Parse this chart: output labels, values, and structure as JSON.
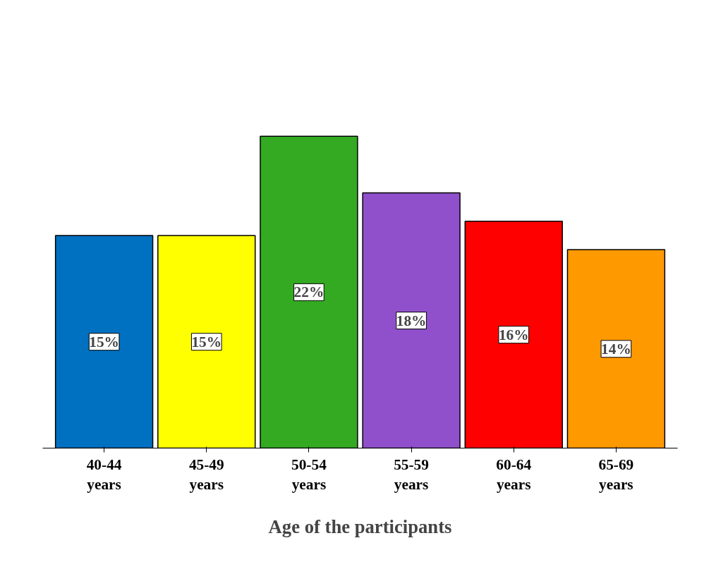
{
  "chart_data": {
    "type": "bar",
    "categories": [
      "40-44\nyears",
      "45-49\nyears",
      "50-54\nyears",
      "55-59\nyears",
      "60-64\nyears",
      "65-69\nyears"
    ],
    "values": [
      15,
      15,
      22,
      18,
      16,
      14
    ],
    "colors": [
      "#0070c0",
      "#ffff00",
      "#33aa22",
      "#9050cc",
      "#ff0000",
      "#ff9900"
    ],
    "value_labels": [
      "15%",
      "15%",
      "22%",
      "18%",
      "16%",
      "14%"
    ],
    "xlabel": "Age of the participants",
    "tick_labels": "x",
    "grid": false
  }
}
